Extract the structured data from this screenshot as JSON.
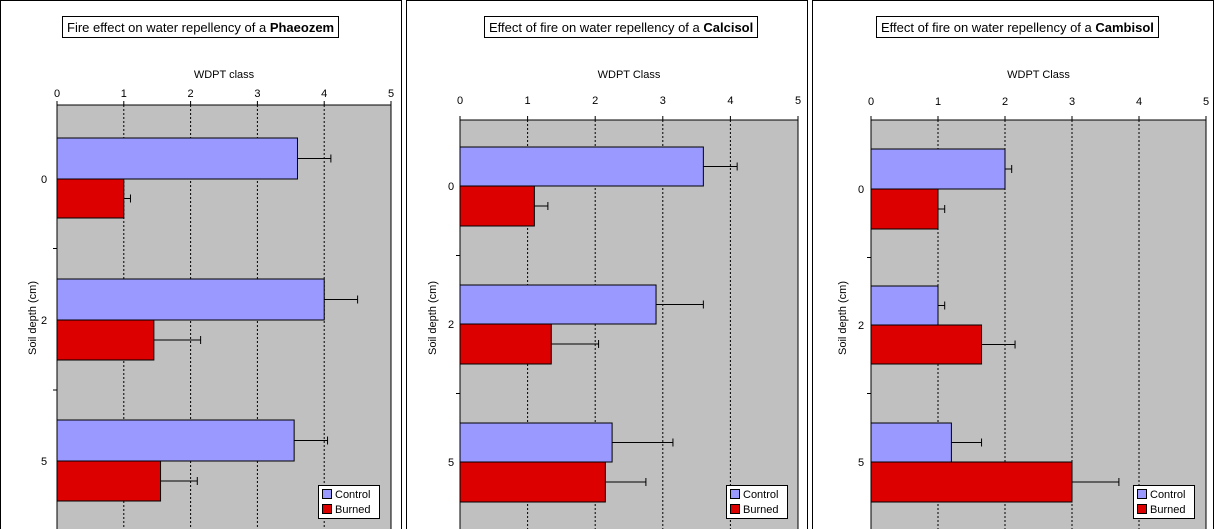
{
  "colors": {
    "control": "#9999FF",
    "burned": "#DD0000",
    "plot_bg": "#C0C0C0"
  },
  "chart_data": [
    {
      "type": "bar",
      "orientation": "horizontal",
      "title_prefix": "Fire effect on water repellency of a ",
      "title_bold": "Phaeozem",
      "xlabel": "WDPT class",
      "ylabel": "Soil depth (cm)",
      "xlim": [
        0,
        5
      ],
      "x_ticks": [
        "0",
        "1",
        "2",
        "3",
        "4",
        "5"
      ],
      "categories": [
        "0",
        "2",
        "5"
      ],
      "series": [
        {
          "name": "Control",
          "values": [
            3.6,
            4.0,
            3.55
          ],
          "errors": [
            0.5,
            0.5,
            0.5
          ]
        },
        {
          "name": "Burned",
          "values": [
            1.0,
            1.45,
            1.55
          ],
          "errors": [
            0.1,
            0.7,
            0.55
          ]
        }
      ],
      "legend_position": "bottom-right",
      "grid": true
    },
    {
      "type": "bar",
      "orientation": "horizontal",
      "title_prefix": "Effect of fire on water repellency of a ",
      "title_bold": "Calcisol",
      "xlabel": "WDPT Class",
      "ylabel": "Soil depth (cm)",
      "xlim": [
        0,
        5
      ],
      "x_ticks": [
        "0",
        "1",
        "2",
        "3",
        "4",
        "5"
      ],
      "categories": [
        "0",
        "2",
        "5"
      ],
      "series": [
        {
          "name": "Control",
          "values": [
            3.6,
            2.9,
            2.25
          ],
          "errors": [
            0.5,
            0.7,
            0.9
          ]
        },
        {
          "name": "Burned",
          "values": [
            1.1,
            1.35,
            2.15
          ],
          "errors": [
            0.2,
            0.7,
            0.6
          ]
        }
      ],
      "legend_position": "bottom-right",
      "grid": true
    },
    {
      "type": "bar",
      "orientation": "horizontal",
      "title_prefix": "Effect of fire on water repellency of a ",
      "title_bold": "Cambisol",
      "xlabel": "WDPT Class",
      "ylabel": "Soil depth (cm)",
      "xlim": [
        0,
        5
      ],
      "x_ticks": [
        "0",
        "1",
        "2",
        "3",
        "4",
        "5"
      ],
      "categories": [
        "0",
        "2",
        "5"
      ],
      "series": [
        {
          "name": "Control",
          "values": [
            2.0,
            1.0,
            1.2
          ],
          "errors": [
            0.1,
            0.1,
            0.45
          ]
        },
        {
          "name": "Burned",
          "values": [
            1.0,
            1.65,
            3.0
          ],
          "errors": [
            0.1,
            0.5,
            0.7
          ]
        }
      ],
      "legend_position": "bottom-right",
      "grid": true
    }
  ]
}
